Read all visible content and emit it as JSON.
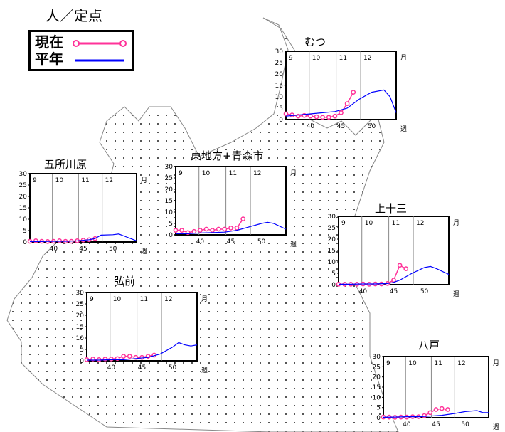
{
  "unit_label": "人／定点",
  "legend": {
    "current": {
      "label": "現在",
      "color": "#ff3399"
    },
    "average": {
      "label": "平年",
      "color": "#0000ff"
    }
  },
  "axis_labels": {
    "month": "月",
    "week": "週"
  },
  "chart_data": [
    {
      "name": "むつ",
      "type": "line",
      "ylim": [
        0,
        30
      ],
      "yticks": [
        0,
        5,
        10,
        15,
        20,
        25,
        30
      ],
      "xlim": [
        36,
        54
      ],
      "xticks": [
        40,
        45,
        50
      ],
      "month_marks": [
        {
          "label": "9",
          "week": 36
        },
        {
          "label": "10",
          "week": 39.8
        },
        {
          "label": "11",
          "week": 44.2
        },
        {
          "label": "12",
          "week": 48.2
        }
      ],
      "series": [
        {
          "name": "現在",
          "x": [
            36,
            37,
            38,
            39,
            40,
            41,
            42,
            43,
            44,
            45,
            46,
            47
          ],
          "y": [
            2.5,
            2,
            1.5,
            1.8,
            1.5,
            1.2,
            1,
            1,
            1.5,
            3,
            7,
            12
          ]
        },
        {
          "name": "平年",
          "x": [
            36,
            38,
            40,
            42,
            44,
            46,
            48,
            50,
            52,
            53,
            54
          ],
          "y": [
            1.5,
            2,
            2.5,
            3,
            3.5,
            5,
            9,
            12,
            13,
            10,
            3
          ]
        }
      ]
    },
    {
      "name": "東地方+青森市",
      "type": "line",
      "ylim": [
        0,
        30
      ],
      "yticks": [
        0,
        5,
        10,
        15,
        20,
        25,
        30
      ],
      "xlim": [
        36,
        54
      ],
      "xticks": [
        40,
        45,
        50
      ],
      "month_marks": [
        {
          "label": "9",
          "week": 36
        },
        {
          "label": "10",
          "week": 39.8
        },
        {
          "label": "11",
          "week": 44.2
        },
        {
          "label": "12",
          "week": 48.2
        }
      ],
      "series": [
        {
          "name": "現在",
          "x": [
            36,
            37,
            38,
            39,
            40,
            41,
            42,
            43,
            44,
            45,
            46,
            47
          ],
          "y": [
            2,
            2,
            1,
            1.5,
            2,
            2.5,
            2,
            2.5,
            2.5,
            3,
            3,
            7
          ]
        },
        {
          "name": "平年",
          "x": [
            36,
            38,
            40,
            42,
            44,
            46,
            48,
            50,
            51,
            52,
            54
          ],
          "y": [
            0.5,
            0.5,
            0.8,
            1,
            1.2,
            2,
            3.5,
            5,
            5.5,
            5,
            2.5
          ]
        }
      ]
    },
    {
      "name": "五所川原",
      "type": "line",
      "ylim": [
        0,
        30
      ],
      "yticks": [
        0,
        5,
        10,
        15,
        20,
        25,
        30
      ],
      "xlim": [
        36,
        54
      ],
      "xticks": [
        40,
        45,
        50
      ],
      "month_marks": [
        {
          "label": "9",
          "week": 36
        },
        {
          "label": "10",
          "week": 39.8
        },
        {
          "label": "11",
          "week": 44.2
        },
        {
          "label": "12",
          "week": 48.2
        }
      ],
      "series": [
        {
          "name": "現在",
          "x": [
            36,
            37,
            38,
            39,
            40,
            41,
            42,
            43,
            44,
            45,
            46,
            47
          ],
          "y": [
            0.3,
            0.5,
            0.3,
            0.2,
            0.3,
            0.5,
            0.3,
            0.3,
            0.5,
            0.8,
            1,
            1.5
          ]
        },
        {
          "name": "平年",
          "x": [
            36,
            38,
            40,
            42,
            44,
            46,
            47,
            48,
            50,
            51,
            52,
            53,
            54
          ],
          "y": [
            0.2,
            0.2,
            0.3,
            0.3,
            0.5,
            1,
            1.5,
            3,
            3.2,
            3.5,
            2.5,
            1.5,
            0.5
          ]
        }
      ]
    },
    {
      "name": "上十三",
      "type": "line",
      "ylim": [
        0,
        30
      ],
      "yticks": [
        0,
        5,
        10,
        15,
        20,
        25,
        30
      ],
      "xlim": [
        36,
        54
      ],
      "xticks": [
        40,
        45,
        50
      ],
      "month_marks": [
        {
          "label": "9",
          "week": 36
        },
        {
          "label": "10",
          "week": 39.8
        },
        {
          "label": "11",
          "week": 44.2
        },
        {
          "label": "12",
          "week": 48.2
        }
      ],
      "series": [
        {
          "name": "現在",
          "x": [
            36,
            37,
            38,
            39,
            40,
            41,
            42,
            43,
            44,
            45,
            46,
            47
          ],
          "y": [
            0.2,
            0.2,
            0.2,
            0.2,
            0.3,
            0.2,
            0.3,
            0.3,
            0.5,
            2,
            8.5,
            7
          ]
        },
        {
          "name": "平年",
          "x": [
            36,
            38,
            40,
            42,
            44,
            45,
            46,
            48,
            50,
            51,
            52,
            54
          ],
          "y": [
            0.2,
            0.2,
            0.3,
            0.3,
            0.5,
            1,
            2,
            5,
            7.5,
            8,
            7,
            4.5
          ]
        }
      ]
    },
    {
      "name": "弘前",
      "type": "line",
      "ylim": [
        0,
        30
      ],
      "yticks": [
        0,
        5,
        10,
        15,
        20,
        25,
        30
      ],
      "xlim": [
        36,
        54
      ],
      "xticks": [
        40,
        45,
        50
      ],
      "month_marks": [
        {
          "label": "9",
          "week": 36
        },
        {
          "label": "10",
          "week": 39.8
        },
        {
          "label": "11",
          "week": 44.2
        },
        {
          "label": "12",
          "week": 48.2
        }
      ],
      "series": [
        {
          "name": "現在",
          "x": [
            36,
            37,
            38,
            39,
            40,
            41,
            42,
            43,
            44,
            45,
            46,
            47
          ],
          "y": [
            0.5,
            0.8,
            0.5,
            0.8,
            0.8,
            1,
            2,
            2,
            1.5,
            1.5,
            2,
            2.5
          ]
        },
        {
          "name": "平年",
          "x": [
            36,
            38,
            40,
            42,
            44,
            46,
            48,
            50,
            51,
            52,
            53,
            54
          ],
          "y": [
            0.3,
            0.3,
            0.5,
            0.5,
            1,
            1.5,
            3,
            6,
            8,
            7,
            6.5,
            7
          ]
        }
      ]
    },
    {
      "name": "八戸",
      "type": "line",
      "ylim": [
        0,
        30
      ],
      "yticks": [
        0,
        5,
        10,
        15,
        20,
        25,
        30
      ],
      "xlim": [
        36,
        54
      ],
      "xticks": [
        40,
        45,
        50
      ],
      "month_marks": [
        {
          "label": "9",
          "week": 36
        },
        {
          "label": "10",
          "week": 39.8
        },
        {
          "label": "11",
          "week": 44.2
        },
        {
          "label": "12",
          "week": 48.2
        }
      ],
      "series": [
        {
          "name": "現在",
          "x": [
            36,
            37,
            38,
            39,
            40,
            41,
            42,
            43,
            44,
            45,
            46,
            47
          ],
          "y": [
            0.3,
            0.3,
            0.2,
            0.3,
            0.3,
            0.5,
            0.5,
            1,
            2.5,
            4,
            4.5,
            4
          ]
        },
        {
          "name": "平年",
          "x": [
            36,
            38,
            40,
            42,
            44,
            46,
            48,
            50,
            52,
            53,
            54
          ],
          "y": [
            0.2,
            0.3,
            0.5,
            0.5,
            0.8,
            1.2,
            2,
            3,
            3.5,
            2.5,
            2.5
          ]
        }
      ]
    }
  ]
}
